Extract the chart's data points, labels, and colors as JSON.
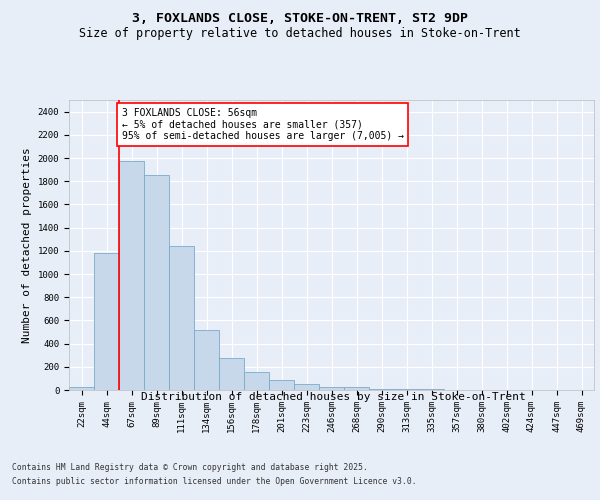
{
  "title1": "3, FOXLANDS CLOSE, STOKE-ON-TRENT, ST2 9DP",
  "title2": "Size of property relative to detached houses in Stoke-on-Trent",
  "xlabel": "Distribution of detached houses by size in Stoke-on-Trent",
  "ylabel": "Number of detached properties",
  "categories": [
    "22sqm",
    "44sqm",
    "67sqm",
    "89sqm",
    "111sqm",
    "134sqm",
    "156sqm",
    "178sqm",
    "201sqm",
    "223sqm",
    "246sqm",
    "268sqm",
    "290sqm",
    "313sqm",
    "335sqm",
    "357sqm",
    "380sqm",
    "402sqm",
    "424sqm",
    "447sqm",
    "469sqm"
  ],
  "values": [
    22,
    1180,
    1970,
    1855,
    1245,
    515,
    275,
    155,
    88,
    48,
    30,
    30,
    10,
    8,
    5,
    3,
    3,
    2,
    2,
    1,
    1
  ],
  "bar_color": "#c8d8eb",
  "bar_edge_color": "#7aaac8",
  "vline_x": 1.5,
  "vline_color": "red",
  "annotation_text": "3 FOXLANDS CLOSE: 56sqm\n← 5% of detached houses are smaller (357)\n95% of semi-detached houses are larger (7,005) →",
  "annotation_box_color": "white",
  "annotation_box_edge": "red",
  "ylim": [
    0,
    2500
  ],
  "yticks": [
    0,
    200,
    400,
    600,
    800,
    1000,
    1200,
    1400,
    1600,
    1800,
    2000,
    2200,
    2400
  ],
  "bg_color": "#e8eef8",
  "plot_bg_color": "#e8eef8",
  "footer1": "Contains HM Land Registry data © Crown copyright and database right 2025.",
  "footer2": "Contains public sector information licensed under the Open Government Licence v3.0.",
  "grid_color": "white",
  "title_fontsize": 9.5,
  "subtitle_fontsize": 8.5,
  "tick_fontsize": 6.5,
  "label_fontsize": 8,
  "annotation_fontsize": 7,
  "footer_fontsize": 5.8
}
